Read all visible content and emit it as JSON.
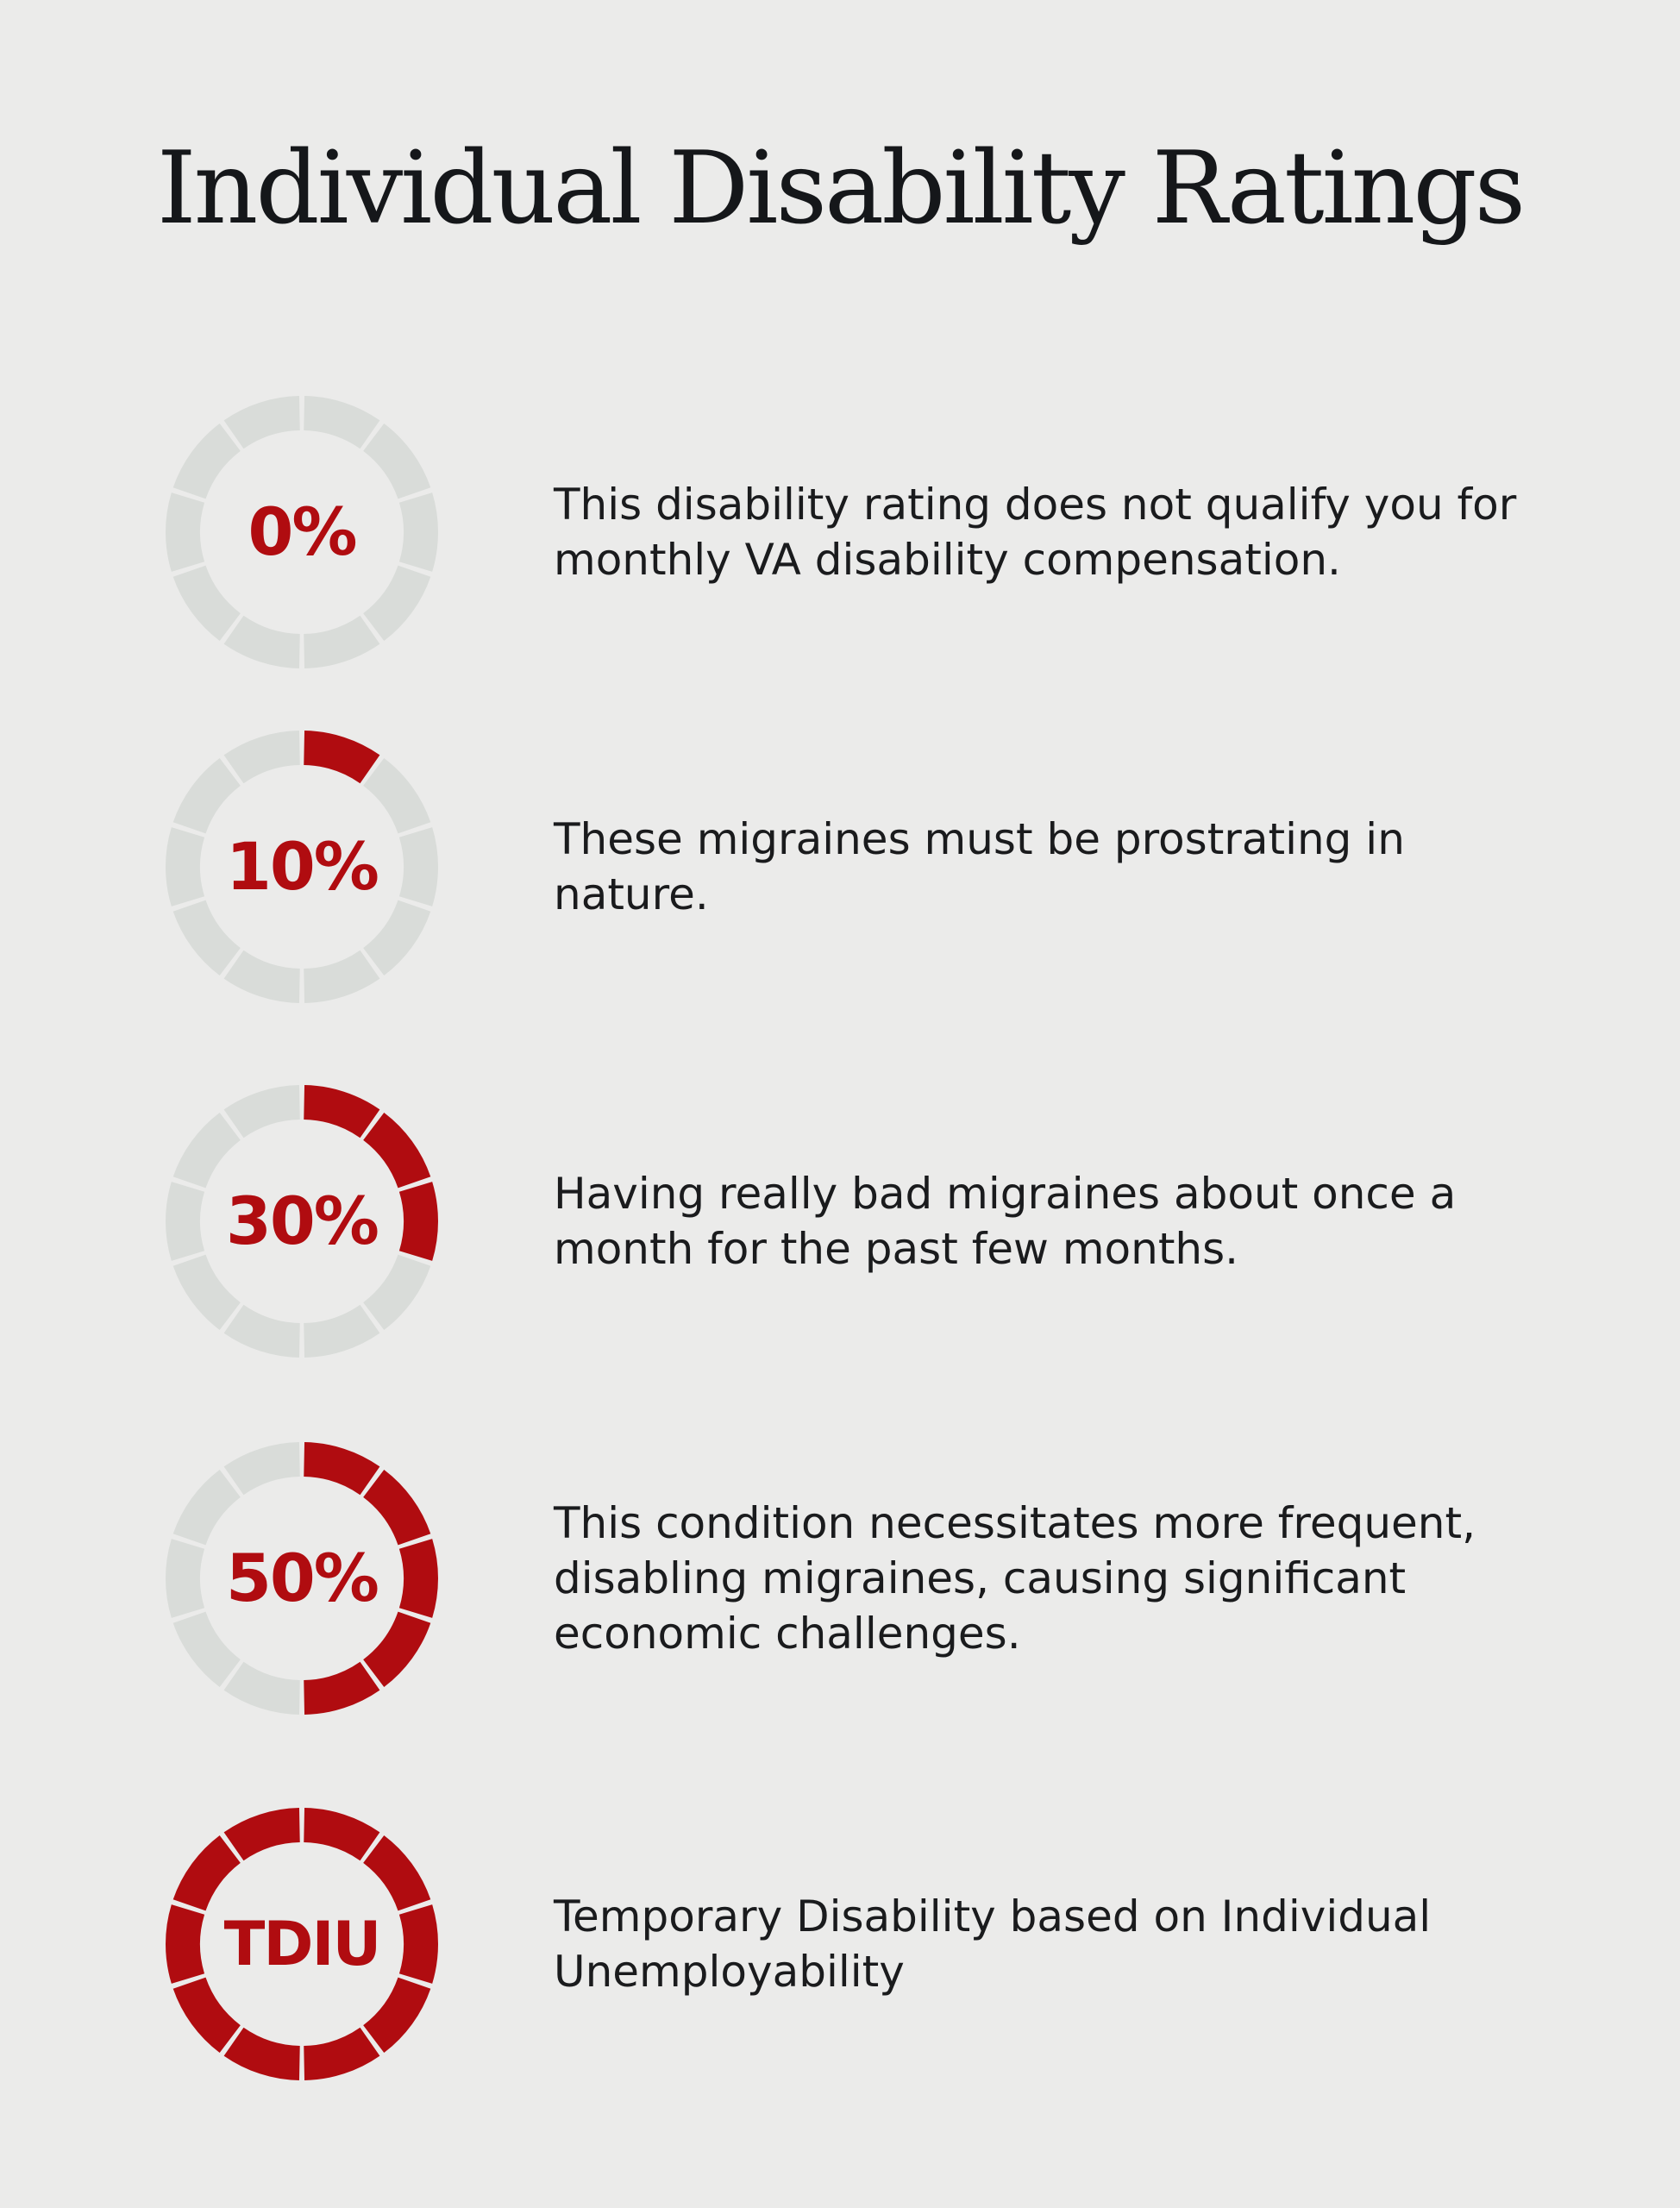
{
  "title": "Individual Disability Ratings",
  "colors": {
    "background": "#ebebea",
    "filled_segment": "#b00c10",
    "empty_segment": "#d9dcd9",
    "label": "#b00c10",
    "text": "#1a1b1d"
  },
  "segments_total": 10,
  "ratings": [
    {
      "label": "0%",
      "filled_segments": 0,
      "description": "This disability rating does not qualify you for monthly VA disability compensation."
    },
    {
      "label": "10%",
      "filled_segments": 1,
      "description": "These migraines must be prostrating in nature."
    },
    {
      "label": "30%",
      "filled_segments": 3,
      "description": "Having really bad migraines about once a month for the past few months."
    },
    {
      "label": "50%",
      "filled_segments": 5,
      "description": "This condition necessitates more frequent, disabling migraines, causing significant economic challenges."
    },
    {
      "label": "TDIU",
      "filled_segments": 10,
      "description": "Temporary Disability based on Individual Unemployability"
    }
  ]
}
